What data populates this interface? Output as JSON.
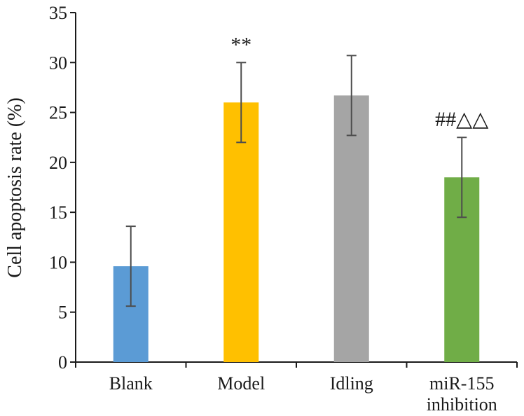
{
  "chart_data": {
    "type": "bar",
    "title": "",
    "xlabel": "",
    "ylabel": "Cell apoptosis rate (%)",
    "ylim": [
      0,
      35
    ],
    "yticks": [
      0,
      5,
      10,
      15,
      20,
      25,
      30,
      35
    ],
    "grid": false,
    "categories": [
      [
        "Blank"
      ],
      [
        "Model"
      ],
      [
        "Idling"
      ],
      [
        "miR-155",
        "inhibition"
      ]
    ],
    "values": [
      9.6,
      26.0,
      26.7,
      18.5
    ],
    "error": [
      4.0,
      4.0,
      4.0,
      4.0
    ],
    "colors": [
      "#5b9bd5",
      "#ffc000",
      "#a5a5a5",
      "#70ad47"
    ],
    "annotations": [
      "",
      "**",
      "",
      "##△△"
    ]
  }
}
